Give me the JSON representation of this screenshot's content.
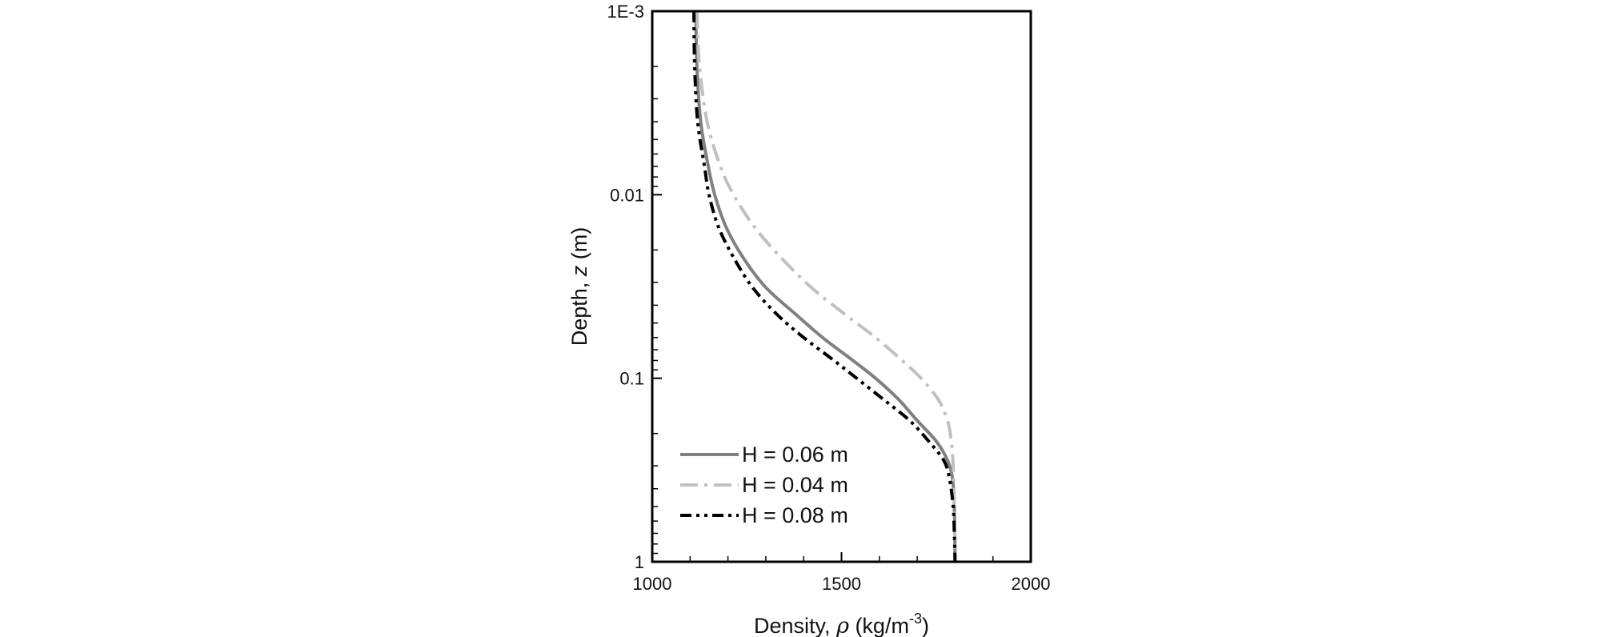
{
  "chart_data": {
    "type": "line",
    "title": "",
    "xlabel": "Density, ρ (kg/m⁻³)",
    "xlabel_parts": {
      "prefix": "Density, ",
      "symbol": "ρ",
      "unit_open": " (kg/m",
      "unit_sup": "-3",
      "unit_close": ")"
    },
    "ylabel": "Depth, z (m)",
    "ylabel_parts": {
      "prefix": "Depth, ",
      "symbol": "z",
      "suffix": " (m)"
    },
    "xlim": [
      1000,
      2000
    ],
    "ylim": [
      0.001,
      1
    ],
    "y_scale": "log",
    "y_inverted": true,
    "x_ticks": [
      1000,
      1500,
      2000
    ],
    "x_tick_labels": [
      "1000",
      "1500",
      "2000"
    ],
    "y_ticks": [
      0.001,
      0.01,
      0.1,
      1
    ],
    "y_tick_labels": [
      "1E-3",
      "0.01",
      "0.1",
      "1"
    ],
    "grid": false,
    "legend_position": "bottom-left",
    "series": [
      {
        "name": "H = 0.06 m",
        "color": "#808080",
        "dash": "solid",
        "points": [
          [
            1115,
            0.001
          ],
          [
            1118,
            0.002
          ],
          [
            1128,
            0.004
          ],
          [
            1148,
            0.007
          ],
          [
            1165,
            0.01
          ],
          [
            1195,
            0.015
          ],
          [
            1240,
            0.022
          ],
          [
            1300,
            0.032
          ],
          [
            1380,
            0.045
          ],
          [
            1450,
            0.06
          ],
          [
            1530,
            0.08
          ],
          [
            1590,
            0.1
          ],
          [
            1650,
            0.13
          ],
          [
            1700,
            0.17
          ],
          [
            1750,
            0.22
          ],
          [
            1780,
            0.28
          ],
          [
            1793,
            0.35
          ],
          [
            1798,
            0.5
          ],
          [
            1800,
            1
          ]
        ]
      },
      {
        "name": "H = 0.04 m",
        "color": "#c0c0c0",
        "dash": "dashdot",
        "points": [
          [
            1118,
            0.001
          ],
          [
            1125,
            0.002
          ],
          [
            1145,
            0.004
          ],
          [
            1180,
            0.007
          ],
          [
            1215,
            0.01
          ],
          [
            1270,
            0.015
          ],
          [
            1340,
            0.022
          ],
          [
            1420,
            0.032
          ],
          [
            1510,
            0.045
          ],
          [
            1590,
            0.06
          ],
          [
            1660,
            0.08
          ],
          [
            1710,
            0.1
          ],
          [
            1755,
            0.13
          ],
          [
            1780,
            0.17
          ],
          [
            1790,
            0.22
          ],
          [
            1795,
            0.3
          ],
          [
            1798,
            0.5
          ],
          [
            1800,
            1
          ]
        ]
      },
      {
        "name": "H = 0.08 m",
        "color": "#000000",
        "dash": "dashdotdot",
        "points": [
          [
            1110,
            0.001
          ],
          [
            1112,
            0.002
          ],
          [
            1120,
            0.004
          ],
          [
            1138,
            0.007
          ],
          [
            1150,
            0.01
          ],
          [
            1175,
            0.015
          ],
          [
            1215,
            0.022
          ],
          [
            1265,
            0.032
          ],
          [
            1330,
            0.045
          ],
          [
            1400,
            0.06
          ],
          [
            1480,
            0.08
          ],
          [
            1540,
            0.1
          ],
          [
            1610,
            0.13
          ],
          [
            1680,
            0.17
          ],
          [
            1730,
            0.22
          ],
          [
            1770,
            0.28
          ],
          [
            1785,
            0.35
          ],
          [
            1795,
            0.5
          ],
          [
            1798,
            0.7
          ],
          [
            1800,
            1
          ]
        ]
      }
    ]
  }
}
